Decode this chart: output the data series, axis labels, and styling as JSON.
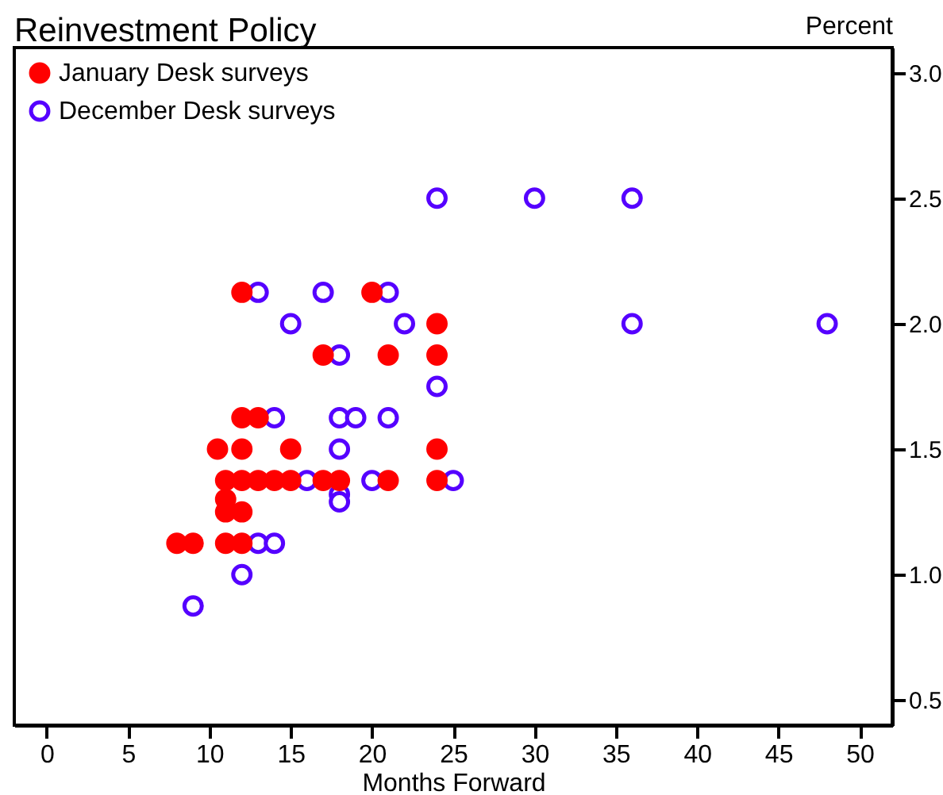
{
  "chart_data": {
    "type": "scatter",
    "title": "Reinvestment Policy",
    "xlabel": "Months Forward",
    "ylabel": "Percent",
    "series": [
      {
        "name": "January Desk surveys",
        "color": "#ff0000",
        "x": [
          12,
          20,
          24,
          17,
          21,
          24,
          12,
          13,
          10.5,
          12,
          15,
          24,
          11,
          12,
          13,
          14,
          15,
          17,
          18,
          21,
          24,
          11,
          11,
          12,
          8,
          9,
          11,
          12
        ],
        "values": [
          2.125,
          2.125,
          2.0,
          1.875,
          1.875,
          1.875,
          1.625,
          1.625,
          1.5,
          1.5,
          1.5,
          1.5,
          1.375,
          1.375,
          1.375,
          1.375,
          1.375,
          1.375,
          1.375,
          1.375,
          1.375,
          1.3,
          1.25,
          1.25,
          1.125,
          1.125,
          1.125,
          1.125
        ]
      },
      {
        "name": "December Desk surveys",
        "color": "#5500ff",
        "x": [
          24,
          30,
          36,
          13,
          17,
          21,
          15,
          22,
          36,
          48,
          18,
          24,
          14,
          18,
          19,
          21,
          18,
          16,
          20,
          25,
          18,
          18,
          13,
          14,
          12,
          9
        ],
        "values": [
          2.5,
          2.5,
          2.5,
          2.125,
          2.125,
          2.125,
          2.0,
          2.0,
          2.0,
          2.0,
          1.875,
          1.75,
          1.625,
          1.625,
          1.625,
          1.625,
          1.5,
          1.375,
          1.375,
          1.375,
          1.32,
          1.29,
          1.125,
          1.125,
          1.0,
          0.875
        ]
      }
    ],
    "xlim": [
      -2,
      52
    ],
    "xticks": [
      0,
      5,
      10,
      15,
      20,
      25,
      30,
      35,
      40,
      45,
      50
    ],
    "ylim": [
      0.4,
      3.1
    ],
    "yticks": [
      {
        "value": 0.5,
        "label": "0.5"
      },
      {
        "value": 1,
        "label": "1.0"
      },
      {
        "value": 1.5,
        "label": "1.5"
      },
      {
        "value": 2,
        "label": "2.0"
      },
      {
        "value": 2.5,
        "label": "2.5"
      },
      {
        "value": 3,
        "label": "3.0"
      }
    ],
    "grid": false,
    "legend": "top left",
    "marker": "circle"
  }
}
